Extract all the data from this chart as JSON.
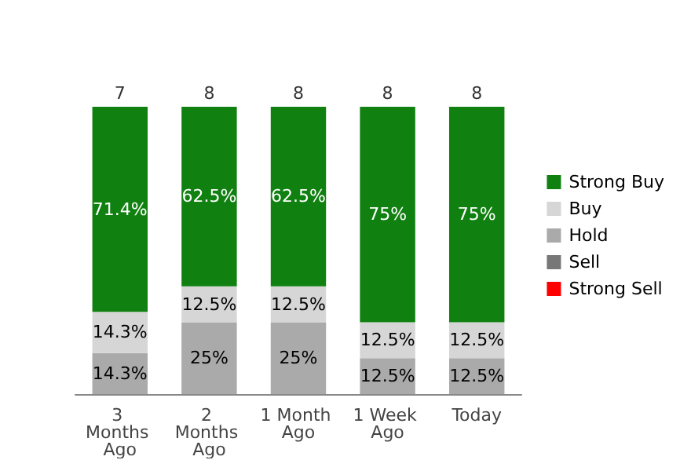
{
  "chart_data": {
    "type": "bar",
    "stacked": true,
    "categories": [
      "3 Months Ago",
      "2 Months Ago",
      "1 Month Ago",
      "1 Week Ago",
      "Today"
    ],
    "series": [
      {
        "name": "Strong Sell",
        "color": "#ff0000",
        "values": [
          null,
          null,
          null,
          null,
          null
        ]
      },
      {
        "name": "Sell",
        "color": "#777777",
        "values": [
          null,
          null,
          null,
          null,
          null
        ]
      },
      {
        "name": "Hold",
        "color": "#aaaaaa",
        "values": [
          14.3,
          25,
          25,
          12.5,
          12.5
        ],
        "value_labels": [
          "14.3%",
          "25%",
          "25%",
          "12.5%",
          "12.5%"
        ]
      },
      {
        "name": "Buy",
        "color": "#d6d6d6",
        "values": [
          14.3,
          12.5,
          12.5,
          12.5,
          12.5
        ],
        "value_labels": [
          "14.3%",
          "12.5%",
          "12.5%",
          "12.5%",
          "12.5%"
        ]
      },
      {
        "name": "Strong Buy",
        "color": "#108010",
        "values": [
          71.4,
          62.5,
          62.5,
          75,
          75
        ],
        "value_labels": [
          "71.4%",
          "62.5%",
          "62.5%",
          "75%",
          "75%"
        ]
      }
    ],
    "annotations": [
      {
        "text": "7",
        "x": "3 Months Ago",
        "y": 100
      },
      {
        "text": "8",
        "x": "2 Months Ago",
        "y": 100
      },
      {
        "text": "8",
        "x": "1 Month Ago",
        "y": 100
      },
      {
        "text": "8",
        "x": "1 Week Ago",
        "y": 100
      },
      {
        "text": "8",
        "x": "Today",
        "y": 100
      }
    ],
    "legend": "right",
    "marker": "square"
  }
}
